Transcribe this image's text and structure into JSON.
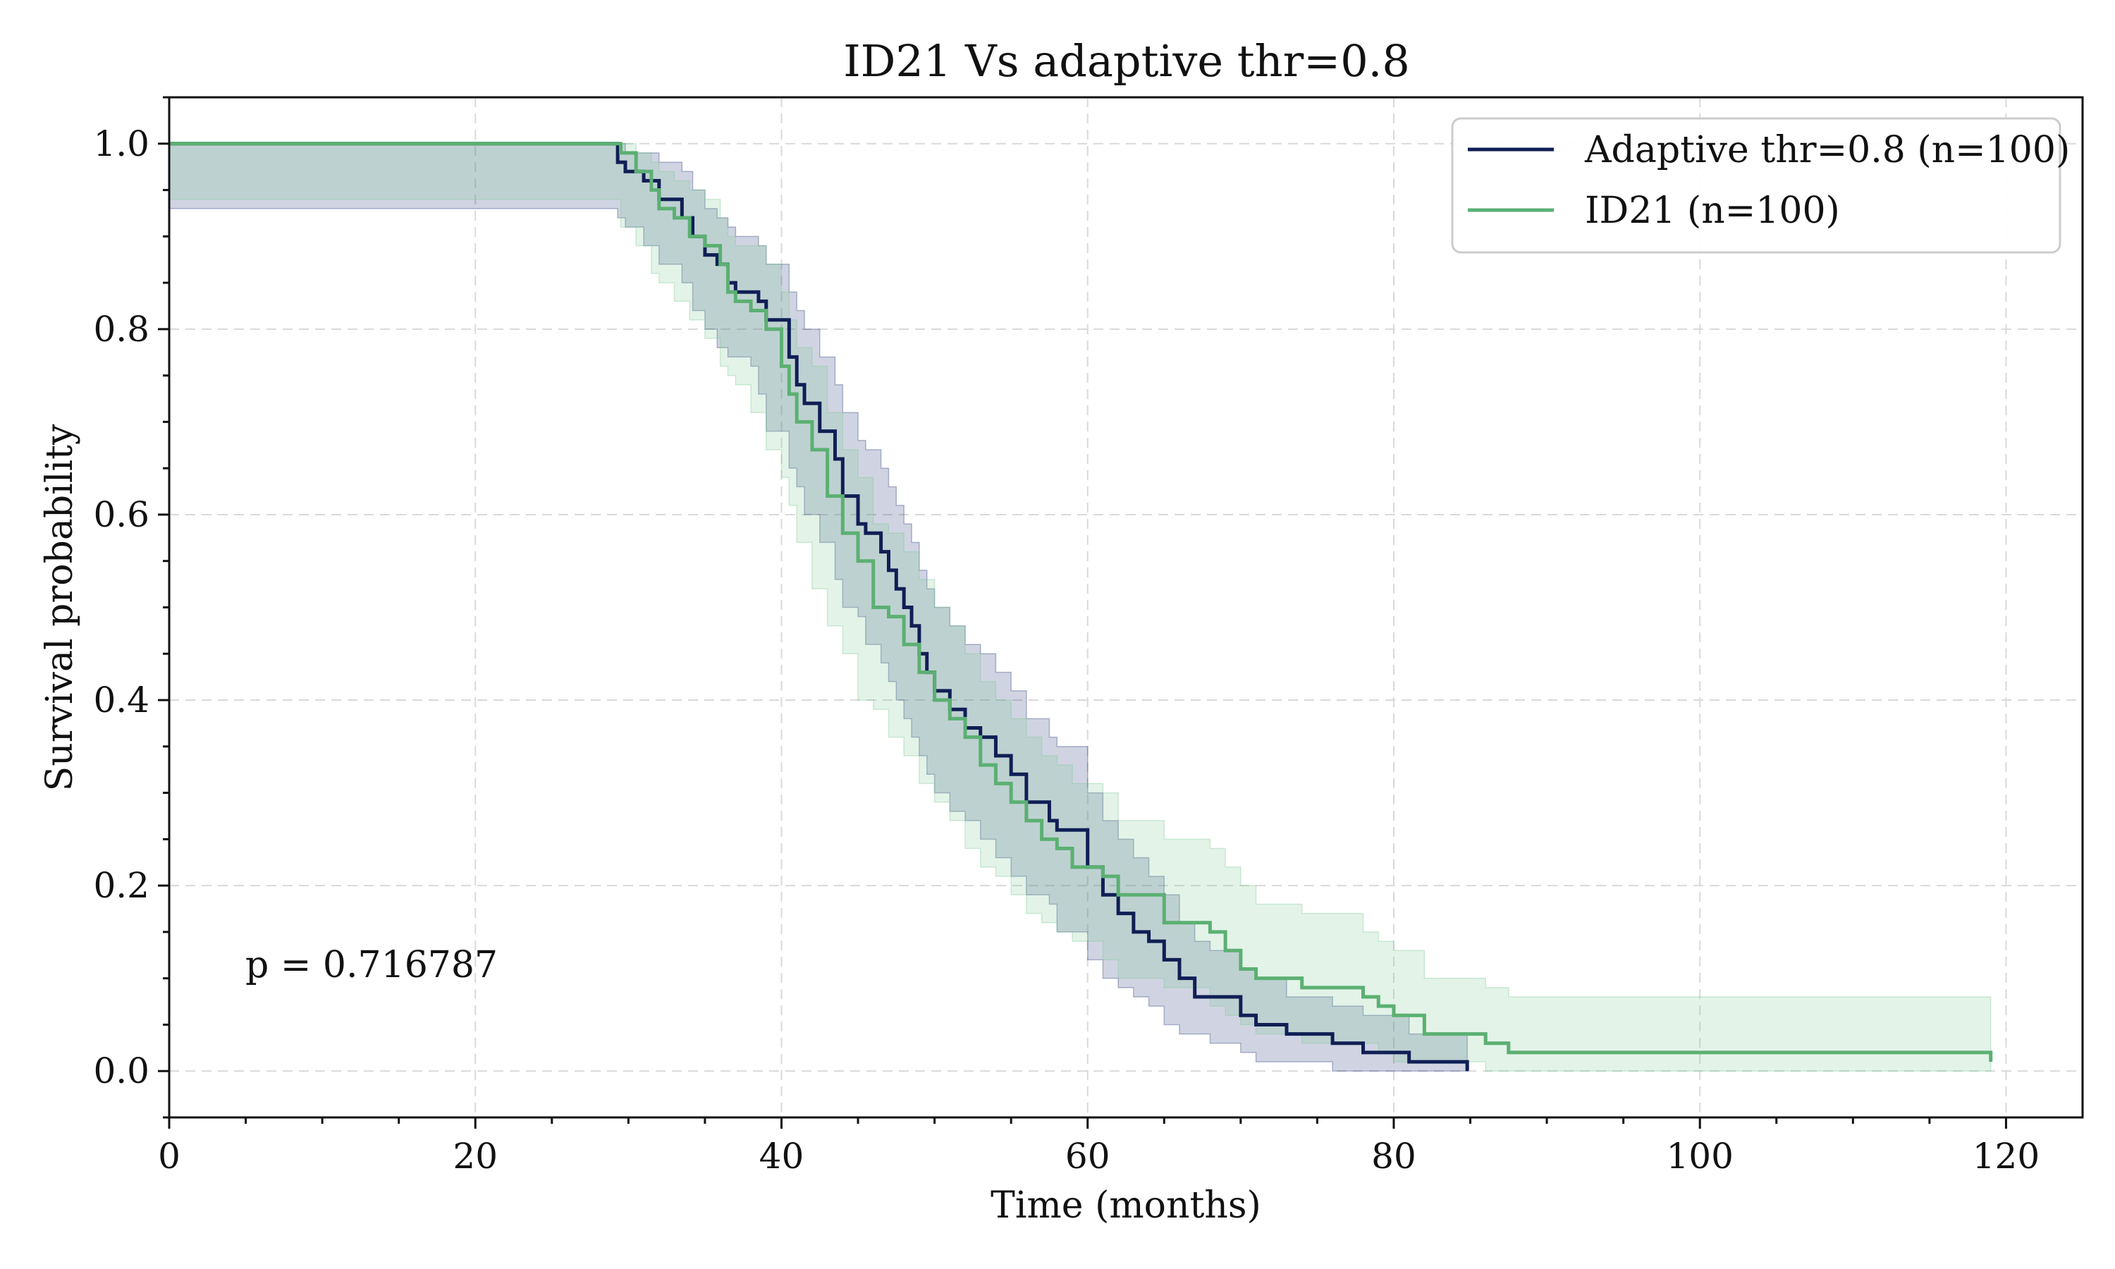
{
  "chart_data": {
    "type": "line",
    "subtype": "kaplan-meier survival",
    "title": "ID21 Vs adaptive thr=0.8",
    "xlabel": "Time (months)",
    "ylabel": "Survival probability",
    "xlim": [
      0,
      125
    ],
    "ylim": [
      -0.05,
      1.05
    ],
    "xticks": [
      "0",
      "20",
      "40",
      "60",
      "80",
      "100",
      "120"
    ],
    "xtick_values": [
      0,
      20,
      40,
      60,
      80,
      100,
      120
    ],
    "yticks": [
      "0.0",
      "0.2",
      "0.4",
      "0.6",
      "0.8",
      "1.0"
    ],
    "ytick_values": [
      0,
      0.2,
      0.4,
      0.6,
      0.8,
      1.0
    ],
    "grid": true,
    "legend_position": "top-right",
    "annotation": "p = 0.716787",
    "series": [
      {
        "name": "Adaptive thr=0.8 (n=100)",
        "color": "#0f1f55",
        "band_color": "#2b3b7a",
        "x": [
          0,
          29.3,
          29.8,
          31.0,
          32.0,
          33.5,
          34.2,
          35.0,
          35.8,
          36.5,
          37.0,
          37.5,
          38.0,
          38.5,
          39.0,
          40.5,
          41.0,
          41.5,
          42.5,
          43.5,
          44.0,
          45.0,
          45.5,
          46.5,
          47.0,
          47.5,
          48.0,
          48.5,
          49.0,
          49.5,
          50.0,
          51.0,
          52.0,
          53.0,
          54.0,
          55.0,
          56.0,
          57.5,
          58.0,
          60.0,
          61.0,
          62.0,
          63.0,
          64.0,
          65.0,
          66.0,
          67.0,
          68.0,
          70.0,
          71.0,
          73.0,
          76.0,
          78.0,
          81.0,
          84.5,
          84.8
        ],
        "y": [
          1.0,
          0.98,
          0.97,
          0.96,
          0.94,
          0.92,
          0.9,
          0.88,
          0.87,
          0.85,
          0.84,
          0.84,
          0.84,
          0.83,
          0.81,
          0.77,
          0.74,
          0.72,
          0.69,
          0.66,
          0.62,
          0.59,
          0.58,
          0.56,
          0.54,
          0.52,
          0.5,
          0.48,
          0.45,
          0.43,
          0.41,
          0.39,
          0.37,
          0.36,
          0.34,
          0.32,
          0.29,
          0.27,
          0.26,
          0.22,
          0.19,
          0.17,
          0.15,
          0.14,
          0.12,
          0.1,
          0.08,
          0.08,
          0.06,
          0.05,
          0.04,
          0.03,
          0.02,
          0.01,
          0.01,
          0.0
        ],
        "ci_lower": [
          1.0,
          0.93,
          0.92,
          0.91,
          0.89,
          0.87,
          0.85,
          0.82,
          0.8,
          0.78,
          0.77,
          0.77,
          0.77,
          0.76,
          0.73,
          0.69,
          0.65,
          0.63,
          0.6,
          0.57,
          0.53,
          0.5,
          0.49,
          0.46,
          0.44,
          0.42,
          0.4,
          0.38,
          0.36,
          0.34,
          0.32,
          0.3,
          0.28,
          0.27,
          0.25,
          0.23,
          0.21,
          0.19,
          0.18,
          0.15,
          0.12,
          0.1,
          0.09,
          0.08,
          0.07,
          0.05,
          0.04,
          0.04,
          0.03,
          0.02,
          0.01,
          0.01,
          0.0,
          0.0,
          0.0,
          0.0
        ],
        "ci_upper": [
          1.0,
          1.0,
          0.99,
          0.99,
          0.98,
          0.97,
          0.95,
          0.93,
          0.92,
          0.91,
          0.9,
          0.9,
          0.9,
          0.89,
          0.87,
          0.84,
          0.82,
          0.8,
          0.77,
          0.74,
          0.71,
          0.68,
          0.67,
          0.65,
          0.63,
          0.61,
          0.59,
          0.57,
          0.54,
          0.52,
          0.5,
          0.48,
          0.46,
          0.45,
          0.43,
          0.41,
          0.38,
          0.36,
          0.35,
          0.3,
          0.27,
          0.25,
          0.23,
          0.21,
          0.19,
          0.16,
          0.14,
          0.13,
          0.11,
          0.1,
          0.08,
          0.07,
          0.06,
          0.04,
          0.04,
          0.04
        ]
      },
      {
        "name": "ID21 (n=100)",
        "color": "#5bb072",
        "band_color": "#7ec994",
        "x": [
          0,
          29.5,
          30.5,
          31.5,
          32.0,
          33.0,
          34.0,
          35.0,
          36.0,
          36.5,
          37.0,
          38.0,
          39.0,
          40.0,
          40.5,
          41.0,
          42.0,
          43.0,
          44.0,
          45.0,
          46.0,
          47.0,
          48.0,
          49.0,
          50.0,
          51.0,
          52.0,
          53.0,
          54.0,
          55.0,
          56.0,
          57.0,
          58.0,
          59.0,
          61.0,
          62.0,
          65.0,
          68.0,
          69.0,
          70.0,
          71.0,
          74.0,
          78.0,
          79.0,
          80.0,
          82.0,
          86.0,
          87.5,
          119.0
        ],
        "y": [
          1.0,
          0.99,
          0.97,
          0.95,
          0.93,
          0.92,
          0.9,
          0.89,
          0.87,
          0.84,
          0.83,
          0.82,
          0.8,
          0.76,
          0.73,
          0.7,
          0.67,
          0.62,
          0.58,
          0.55,
          0.5,
          0.49,
          0.46,
          0.43,
          0.4,
          0.38,
          0.36,
          0.33,
          0.31,
          0.29,
          0.27,
          0.25,
          0.24,
          0.22,
          0.21,
          0.19,
          0.16,
          0.15,
          0.13,
          0.11,
          0.1,
          0.09,
          0.08,
          0.07,
          0.06,
          0.04,
          0.03,
          0.02,
          0.01
        ],
        "ci_lower": [
          1.0,
          0.94,
          0.91,
          0.89,
          0.86,
          0.85,
          0.83,
          0.81,
          0.79,
          0.76,
          0.75,
          0.74,
          0.71,
          0.67,
          0.64,
          0.61,
          0.57,
          0.52,
          0.48,
          0.45,
          0.4,
          0.39,
          0.36,
          0.34,
          0.31,
          0.29,
          0.27,
          0.24,
          0.22,
          0.21,
          0.19,
          0.17,
          0.16,
          0.15,
          0.14,
          0.12,
          0.1,
          0.09,
          0.07,
          0.06,
          0.05,
          0.04,
          0.03,
          0.03,
          0.02,
          0.01,
          0.01,
          0.0,
          0.0
        ],
        "ci_upper": [
          1.0,
          1.0,
          0.99,
          0.98,
          0.97,
          0.96,
          0.95,
          0.94,
          0.92,
          0.9,
          0.89,
          0.89,
          0.87,
          0.84,
          0.81,
          0.78,
          0.76,
          0.71,
          0.67,
          0.64,
          0.59,
          0.58,
          0.56,
          0.53,
          0.5,
          0.48,
          0.45,
          0.42,
          0.4,
          0.38,
          0.36,
          0.34,
          0.33,
          0.31,
          0.3,
          0.27,
          0.25,
          0.24,
          0.22,
          0.2,
          0.18,
          0.17,
          0.15,
          0.14,
          0.13,
          0.1,
          0.09,
          0.08,
          0.05
        ]
      }
    ]
  }
}
